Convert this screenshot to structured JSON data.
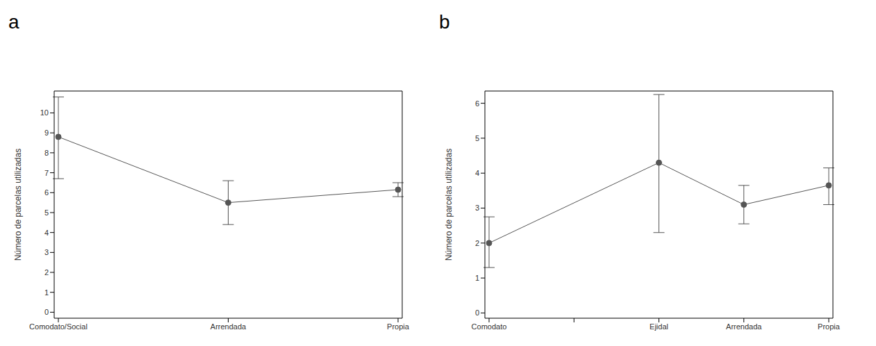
{
  "chart_data": [
    {
      "type": "line",
      "title": "a",
      "categories": [
        "Comodato/Social",
        "Arrendada",
        "Propia"
      ],
      "values": [
        8.8,
        5.5,
        6.15
      ],
      "lower": [
        6.7,
        4.4,
        5.8
      ],
      "upper": [
        10.8,
        6.6,
        6.5
      ],
      "ylabel": "Número de parcelas utilizadas",
      "ylim": [
        -0.3,
        11.1
      ],
      "yticks": [
        0,
        1,
        2,
        3,
        4,
        5,
        6,
        7,
        8,
        9,
        10
      ],
      "color": "#555555",
      "marker": "circle",
      "line_style": "solid"
    },
    {
      "type": "line",
      "title": "b",
      "categories": [
        "Comodato",
        null,
        "Ejidal",
        "Arrendada",
        "Propia"
      ],
      "values": [
        2.0,
        null,
        4.3,
        3.1,
        3.65
      ],
      "lower": [
        1.3,
        null,
        2.3,
        2.55,
        3.1
      ],
      "upper": [
        2.75,
        null,
        6.25,
        3.65,
        4.15
      ],
      "ylabel": "Número de parcelas utilizadas",
      "ylim": [
        -0.15,
        6.35
      ],
      "yticks": [
        0,
        1,
        2,
        3,
        4,
        5,
        6
      ],
      "color": "#555555",
      "marker": "circle",
      "line_style": "solid"
    }
  ]
}
